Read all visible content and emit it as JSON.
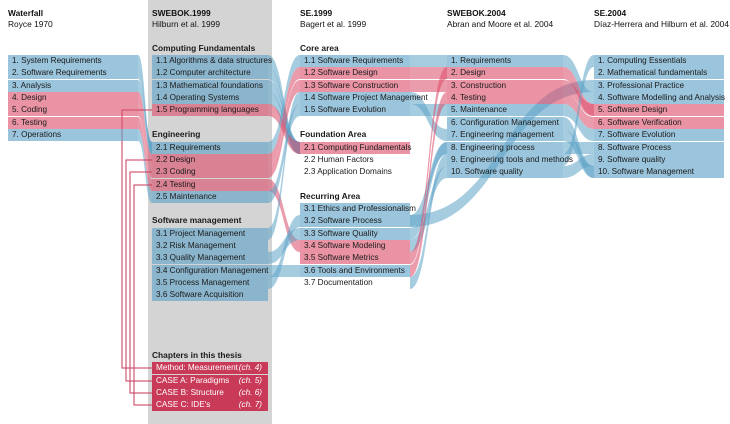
{
  "columns": [
    {
      "title": "Waterfall",
      "subtitle": "Royce 1970",
      "sections": [
        {
          "heading": "",
          "items": [
            {
              "label": "1. System Requirements",
              "style": "blue"
            },
            {
              "label": "2. Software Requirements",
              "style": "blue"
            },
            {
              "label": "3. Analysis",
              "style": "blue"
            },
            {
              "label": "4. Design",
              "style": "red"
            },
            {
              "label": "5. Coding",
              "style": "red"
            },
            {
              "label": "6. Testing",
              "style": "red"
            },
            {
              "label": "7. Operations",
              "style": "blue"
            }
          ]
        }
      ]
    },
    {
      "title": "SWEBOK.1999",
      "subtitle": "Hilburn et al. 1999",
      "sections": [
        {
          "heading": "Computing Fundamentals",
          "items": [
            {
              "label": "1.1 Algorithms & data structures",
              "style": "blue"
            },
            {
              "label": "1.2 Computer architecture",
              "style": "blue"
            },
            {
              "label": "1.3 Mathematical foundations",
              "style": "blue"
            },
            {
              "label": "1.4 Operating Systems",
              "style": "blue"
            },
            {
              "label": "1.5 Programming languages",
              "style": "red"
            }
          ]
        },
        {
          "heading": "Engineering",
          "items": [
            {
              "label": "2.1 Requirements",
              "style": "blue"
            },
            {
              "label": "2.2 Design",
              "style": "red"
            },
            {
              "label": "2.3 Coding",
              "style": "red"
            },
            {
              "label": "2.4 Testing",
              "style": "red"
            },
            {
              "label": "2.5 Maintenance",
              "style": "blue"
            }
          ]
        },
        {
          "heading": "Software management",
          "items": [
            {
              "label": "3.1 Project Management",
              "style": "blue"
            },
            {
              "label": "3.2 Risk Management",
              "style": "blue"
            },
            {
              "label": "3.3 Quality Management",
              "style": "blue"
            },
            {
              "label": "3.4 Configuration Management",
              "style": "blue"
            },
            {
              "label": "3.5 Process Management",
              "style": "blue"
            },
            {
              "label": "3.6 Software Acquisition",
              "style": "blue"
            }
          ]
        },
        {
          "heading": "Chapters in this thesis",
          "items": [
            {
              "label": "Method: Measurement",
              "chapter": "(ch. 4)",
              "style": "strong"
            },
            {
              "label": "CASE A: Paradigms",
              "chapter": "(ch. 5)",
              "style": "strong"
            },
            {
              "label": "CASE B: Structure",
              "chapter": "(ch. 6)",
              "style": "strong"
            },
            {
              "label": "CASE C: IDE's",
              "chapter": "(ch. 7)",
              "style": "strong"
            }
          ]
        }
      ]
    },
    {
      "title": "SE.1999",
      "subtitle": "Bagert et al. 1999",
      "sections": [
        {
          "heading": "Core area",
          "items": [
            {
              "label": "1.1 Software Requirements",
              "style": "blue"
            },
            {
              "label": "1.2 Software Design",
              "style": "red"
            },
            {
              "label": "1.3 Software Construction",
              "style": "red"
            },
            {
              "label": "1.4 Software Project Management",
              "style": "blue"
            },
            {
              "label": "1.5 Software Evolution",
              "style": "blue"
            }
          ]
        },
        {
          "heading": "Foundation Area",
          "items": [
            {
              "label": "2.1 Computing Fundamentals",
              "style": "red"
            },
            {
              "label": "2.2 Human Factors",
              "style": "none"
            },
            {
              "label": "2.3 Application Domains",
              "style": "none"
            }
          ]
        },
        {
          "heading": "Recurring Area",
          "items": [
            {
              "label": "3.1 Ethics and Professionalism",
              "style": "blue"
            },
            {
              "label": "3.2 Software Process",
              "style": "blue"
            },
            {
              "label": "3.3 Software Quality",
              "style": "blue"
            },
            {
              "label": "3.4 Software Modeling",
              "style": "red"
            },
            {
              "label": "3.5 Software Metrics",
              "style": "red"
            },
            {
              "label": "3.6 Tools and Environments",
              "style": "blue"
            },
            {
              "label": "3.7 Documentation",
              "style": "none"
            }
          ]
        }
      ]
    },
    {
      "title": "SWEBOK.2004",
      "subtitle": "Abran and Moore et al. 2004",
      "sections": [
        {
          "heading": "",
          "items": [
            {
              "label": "1. Requirements",
              "style": "blue"
            },
            {
              "label": "2. Design",
              "style": "red"
            },
            {
              "label": "3. Construction",
              "style": "red"
            },
            {
              "label": "4. Testing",
              "style": "red"
            },
            {
              "label": "5. Maintenance",
              "style": "blue"
            },
            {
              "label": "6. Configuration Management",
              "style": "blue"
            },
            {
              "label": "7. Engineering management",
              "style": "blue"
            },
            {
              "label": "8. Engineering process",
              "style": "blue"
            },
            {
              "label": "9. Engineering tools and methods",
              "style": "blue"
            },
            {
              "label": "10. Software quality",
              "style": "blue"
            }
          ]
        }
      ]
    },
    {
      "title": "SE.2004",
      "subtitle": "Díaz-Herrera and Hilburn et al. 2004",
      "sections": [
        {
          "heading": "",
          "items": [
            {
              "label": "1. Computing Essentials",
              "style": "blue"
            },
            {
              "label": "2. Mathematical fundamentals",
              "style": "blue"
            },
            {
              "label": "3. Professional Practice",
              "style": "blue"
            },
            {
              "label": "4. Software Modelling and Analysis",
              "style": "blue"
            },
            {
              "label": "5. Software Design",
              "style": "red"
            },
            {
              "label": "6. Software Verification",
              "style": "red"
            },
            {
              "label": "7. Software Evolution",
              "style": "blue"
            },
            {
              "label": "8. Software Process",
              "style": "blue"
            },
            {
              "label": "9. Software quality",
              "style": "blue"
            },
            {
              "label": "10. Software Management",
              "style": "blue"
            }
          ]
        }
      ]
    }
  ],
  "links": [
    {
      "from": "0.0",
      "to": "1.5",
      "color": "blue"
    },
    {
      "from": "0.1",
      "to": "1.5",
      "color": "blue"
    },
    {
      "from": "0.2",
      "to": "1.5",
      "color": "blue"
    },
    {
      "from": "0.3",
      "to": "1.6",
      "color": "red"
    },
    {
      "from": "0.4",
      "to": "1.7",
      "color": "red"
    },
    {
      "from": "0.5",
      "to": "1.8",
      "color": "red"
    },
    {
      "from": "0.6",
      "to": "1.9",
      "color": "blue"
    },
    {
      "from": "1.0",
      "to": "2.5",
      "color": "blue"
    },
    {
      "from": "1.1",
      "to": "2.5",
      "color": "blue"
    },
    {
      "from": "1.2",
      "to": "2.5",
      "color": "blue"
    },
    {
      "from": "1.3",
      "to": "2.5",
      "color": "blue"
    },
    {
      "from": "1.4",
      "to": "2.5",
      "color": "red"
    },
    {
      "from": "1.5",
      "to": "2.0",
      "color": "blue"
    },
    {
      "from": "1.6",
      "to": "2.1",
      "color": "red"
    },
    {
      "from": "1.7",
      "to": "2.2",
      "color": "red"
    },
    {
      "from": "1.8",
      "to": "2.11",
      "color": "red"
    },
    {
      "from": "1.9",
      "to": "2.4",
      "color": "blue"
    },
    {
      "from": "1.10",
      "to": "2.3",
      "color": "blue"
    },
    {
      "from": "1.12",
      "to": "2.10",
      "color": "blue"
    },
    {
      "from": "1.13",
      "to": "2.13",
      "color": "blue"
    },
    {
      "from": "1.14",
      "to": "2.9",
      "color": "blue"
    },
    {
      "from": "2.0",
      "to": "3.0",
      "color": "blue"
    },
    {
      "from": "2.1",
      "to": "3.1",
      "color": "red"
    },
    {
      "from": "2.2",
      "to": "3.2",
      "color": "red"
    },
    {
      "from": "2.3",
      "to": "3.6",
      "color": "blue"
    },
    {
      "from": "2.4",
      "to": "3.4",
      "color": "blue"
    },
    {
      "from": "2.9",
      "to": "3.7",
      "color": "blue"
    },
    {
      "from": "2.9",
      "to": "4.2",
      "color": "blue"
    },
    {
      "from": "2.10",
      "to": "3.7",
      "color": "blue"
    },
    {
      "from": "2.11",
      "to": "3.9",
      "color": "blue"
    },
    {
      "from": "2.12",
      "to": "3.1",
      "color": "red"
    },
    {
      "from": "2.13",
      "to": "3.3",
      "color": "red"
    },
    {
      "from": "2.14",
      "to": "3.8",
      "color": "blue"
    },
    {
      "from": "3.0",
      "to": "4.3",
      "color": "blue"
    },
    {
      "from": "3.1",
      "to": "4.4",
      "color": "red"
    },
    {
      "from": "3.2",
      "to": "4.4",
      "color": "red"
    },
    {
      "from": "3.3",
      "to": "4.5",
      "color": "red"
    },
    {
      "from": "3.4",
      "to": "4.6",
      "color": "blue"
    },
    {
      "from": "3.5",
      "to": "4.9",
      "color": "blue"
    },
    {
      "from": "3.6",
      "to": "4.9",
      "color": "blue"
    },
    {
      "from": "3.7",
      "to": "4.7",
      "color": "blue"
    },
    {
      "from": "3.8",
      "to": "4.0",
      "color": "blue"
    },
    {
      "from": "3.9",
      "to": "4.8",
      "color": "blue"
    }
  ],
  "thesis_links": [
    {
      "chapter": 0,
      "target": "1.4"
    },
    {
      "chapter": 1,
      "target": "1.6"
    },
    {
      "chapter": 2,
      "target": "1.7"
    },
    {
      "chapter": 3,
      "target": "1.8"
    }
  ]
}
